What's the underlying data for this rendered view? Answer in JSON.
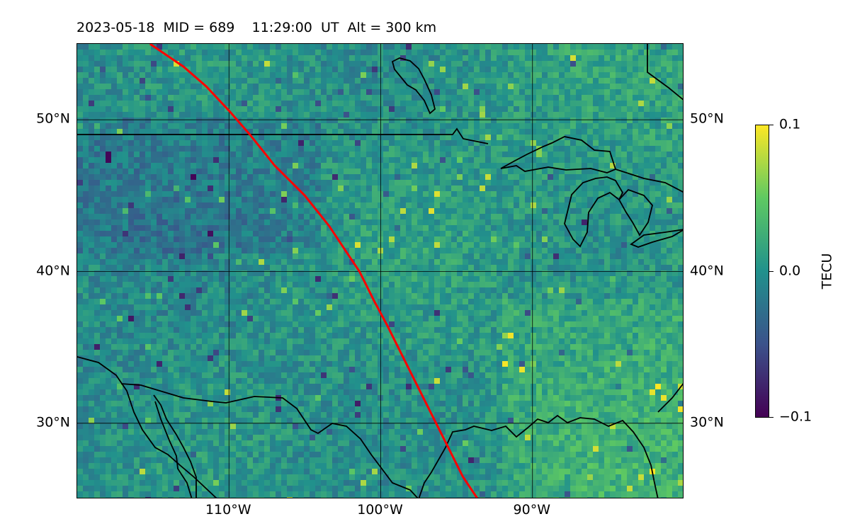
{
  "title": "2023-05-18  MID = 689    11:29:00  UT  Alt = 300 km",
  "map": {
    "projection": "equirectangular",
    "lon_range": [
      -120,
      -80
    ],
    "lat_range": [
      25,
      55
    ],
    "coastline_color": "#000000",
    "grid_color": "#000000",
    "track_color": "#ff0000",
    "track_name": "red-path",
    "features": [
      "coastlines",
      "country-borders",
      "great-lakes"
    ]
  },
  "ticks": {
    "lat": [
      {
        "value": 50,
        "label": "50°N"
      },
      {
        "value": 40,
        "label": "40°N"
      },
      {
        "value": 30,
        "label": "30°N"
      }
    ],
    "lon": [
      {
        "value": -110,
        "label": "110°W"
      },
      {
        "value": -100,
        "label": "100°W"
      },
      {
        "value": -90,
        "label": "90°W"
      }
    ]
  },
  "colorbar": {
    "label": "TECU",
    "min": -0.1,
    "max": 0.1,
    "ticks": [
      "0.1",
      "0.0",
      "−0.1"
    ],
    "colormap": [
      "#440154",
      "#3b528b",
      "#21918c",
      "#5ec962",
      "#fde725"
    ]
  },
  "track": [
    [
      -115.2,
      55.0
    ],
    [
      -113.0,
      53.5
    ],
    [
      -111.5,
      52.2
    ],
    [
      -110.0,
      50.6
    ],
    [
      -108.6,
      49.0
    ],
    [
      -107.0,
      47.0
    ],
    [
      -105.0,
      45.0
    ],
    [
      -103.4,
      43.0
    ],
    [
      -102.4,
      41.5
    ],
    [
      -101.4,
      40.0
    ],
    [
      -100.4,
      38.0
    ],
    [
      -99.6,
      36.5
    ],
    [
      -98.6,
      34.5
    ],
    [
      -97.6,
      32.5
    ],
    [
      -96.6,
      30.5
    ],
    [
      -95.6,
      28.5
    ],
    [
      -94.6,
      26.5
    ],
    [
      -93.6,
      25.0
    ]
  ]
}
